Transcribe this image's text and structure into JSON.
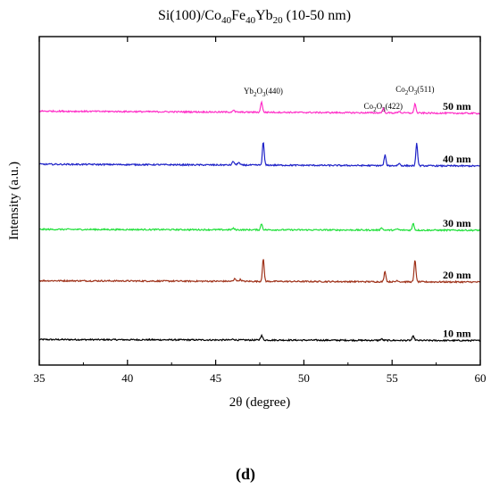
{
  "chart_data": {
    "type": "line",
    "title_parts": [
      "Si(100)/Co",
      "40",
      "Fe",
      "40",
      "Yb",
      "20",
      " (10-50 nm)"
    ],
    "xlabel": "2θ (degree)",
    "ylabel": "Intensity (a.u.)",
    "xlim": [
      35,
      60
    ],
    "xticks": [
      35,
      40,
      45,
      50,
      55,
      60
    ],
    "xtick_labels": [
      "35",
      "40",
      "45",
      "50",
      "55",
      "60"
    ],
    "grid": false,
    "legend": "none",
    "panel_label": "(d)",
    "series": [
      {
        "name": "10 nm",
        "color": "#000000",
        "start": 0.16,
        "end": 0.04,
        "peaks": [
          {
            "x": 47.6,
            "h": 0.5,
            "w": 0.06
          },
          {
            "x": 56.2,
            "h": 0.45,
            "w": 0.06
          },
          {
            "x": 54.4,
            "h": 0.15,
            "w": 0.06
          },
          {
            "x": 46.0,
            "h": 0.1,
            "w": 0.06
          }
        ]
      },
      {
        "name": "20 nm",
        "color": "#a0341c",
        "start": 0.15,
        "end": 0.0,
        "peaks": [
          {
            "x": 47.7,
            "h": 2.5,
            "w": 0.05
          },
          {
            "x": 56.3,
            "h": 2.5,
            "w": 0.05
          },
          {
            "x": 54.6,
            "h": 1.2,
            "w": 0.05
          },
          {
            "x": 46.1,
            "h": 0.3,
            "w": 0.06
          },
          {
            "x": 46.4,
            "h": 0.2,
            "w": 0.06
          },
          {
            "x": 55.3,
            "h": 0.15,
            "w": 0.06
          }
        ]
      },
      {
        "name": "30 nm",
        "color": "#22e03c",
        "start": 0.1,
        "end": 0.0,
        "peaks": [
          {
            "x": 47.6,
            "h": 0.7,
            "w": 0.05
          },
          {
            "x": 56.2,
            "h": 0.8,
            "w": 0.05
          },
          {
            "x": 54.4,
            "h": 0.3,
            "w": 0.05
          },
          {
            "x": 46.0,
            "h": 0.15,
            "w": 0.06
          },
          {
            "x": 55.3,
            "h": 0.12,
            "w": 0.06
          }
        ]
      },
      {
        "name": "40 nm",
        "color": "#1f23c8",
        "start": 0.2,
        "end": 0.0,
        "peaks": [
          {
            "x": 47.7,
            "h": 2.6,
            "w": 0.05
          },
          {
            "x": 56.4,
            "h": 2.5,
            "w": 0.05
          },
          {
            "x": 54.6,
            "h": 1.2,
            "w": 0.05
          },
          {
            "x": 46.0,
            "h": 0.4,
            "w": 0.06
          },
          {
            "x": 46.3,
            "h": 0.3,
            "w": 0.06
          },
          {
            "x": 55.4,
            "h": 0.25,
            "w": 0.06
          }
        ]
      },
      {
        "name": "50 nm",
        "color": "#ff30c8",
        "start": 0.25,
        "end": 0.0,
        "peaks": [
          {
            "x": 47.6,
            "h": 1.2,
            "w": 0.05
          },
          {
            "x": 56.3,
            "h": 1.1,
            "w": 0.05
          },
          {
            "x": 54.5,
            "h": 0.5,
            "w": 0.05
          },
          {
            "x": 46.0,
            "h": 0.2,
            "w": 0.06
          },
          {
            "x": 55.4,
            "h": 0.2,
            "w": 0.06
          }
        ]
      }
    ],
    "annotations": [
      {
        "x": 47.7,
        "parts": [
          "Yb",
          "2",
          "O",
          "3",
          "(440)"
        ]
      },
      {
        "x": 54.5,
        "parts": [
          "Co",
          "2",
          "O",
          "3",
          "(422)"
        ]
      },
      {
        "x": 56.3,
        "parts": [
          "Co",
          "2",
          "O",
          "3",
          "(511)"
        ]
      }
    ]
  }
}
